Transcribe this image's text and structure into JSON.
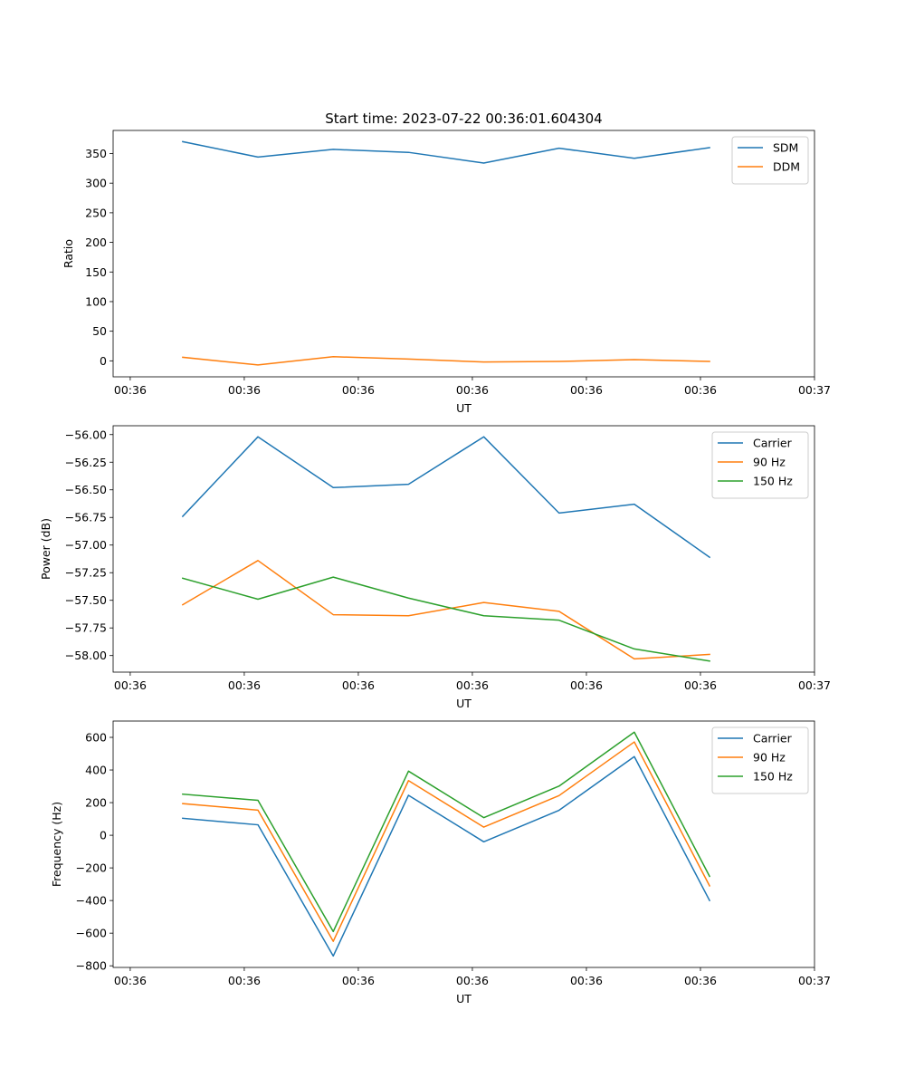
{
  "figure": {
    "title": "Start time: 2023-07-22 00:36:01.604304"
  },
  "chart_data": [
    {
      "type": "line",
      "title": "Start time: 2023-07-22 00:36:01.604304",
      "xlabel": "UT",
      "ylabel": "Ratio",
      "x_tick_labels": [
        "00:36",
        "00:36",
        "00:36",
        "00:36",
        "00:36",
        "00:36",
        "00:37"
      ],
      "x_ticks": [
        0,
        1,
        2,
        3,
        4,
        5,
        6
      ],
      "xlim": [
        -0.15,
        6.0
      ],
      "ylim": [
        -27,
        389
      ],
      "y_ticks": [
        0,
        50,
        100,
        150,
        200,
        250,
        300,
        350
      ],
      "y_tick_labels": [
        "0",
        "50",
        "100",
        "150",
        "200",
        "250",
        "300",
        "350"
      ],
      "legend_location": "top-right",
      "series": [
        {
          "name": "SDM",
          "color": "#1f77b4",
          "x": [
            0.46,
            1.12,
            1.78,
            2.44,
            3.1,
            3.76,
            4.42,
            5.08
          ],
          "y": [
            370,
            344,
            357,
            352,
            334,
            359,
            342,
            360
          ]
        },
        {
          "name": "DDM",
          "color": "#ff7f0e",
          "x": [
            0.46,
            1.12,
            1.78,
            2.44,
            3.1,
            3.76,
            4.42,
            5.08
          ],
          "y": [
            6,
            -7,
            7,
            3,
            -2,
            -1,
            2,
            -1
          ]
        }
      ]
    },
    {
      "type": "line",
      "title": "",
      "xlabel": "UT",
      "ylabel": "Power (dB)",
      "x_tick_labels": [
        "00:36",
        "00:36",
        "00:36",
        "00:36",
        "00:36",
        "00:36",
        "00:37"
      ],
      "x_ticks": [
        0,
        1,
        2,
        3,
        4,
        5,
        6
      ],
      "xlim": [
        -0.15,
        6.0
      ],
      "ylim": [
        -58.15,
        -55.92
      ],
      "y_ticks": [
        -56.0,
        -56.25,
        -56.5,
        -56.75,
        -57.0,
        -57.25,
        -57.5,
        -57.75,
        -58.0
      ],
      "y_tick_labels": [
        "−56.00",
        "−56.25",
        "−56.50",
        "−56.75",
        "−57.00",
        "−57.25",
        "−57.50",
        "−57.75",
        "−58.00"
      ],
      "legend_location": "top-right",
      "series": [
        {
          "name": "Carrier",
          "color": "#1f77b4",
          "x": [
            0.46,
            1.12,
            1.78,
            2.44,
            3.1,
            3.76,
            4.42,
            5.08
          ],
          "y": [
            -56.74,
            -56.02,
            -56.48,
            -56.45,
            -56.02,
            -56.71,
            -56.63,
            -57.11
          ]
        },
        {
          "name": "90 Hz",
          "color": "#ff7f0e",
          "x": [
            0.46,
            1.12,
            1.78,
            2.44,
            3.1,
            3.76,
            4.42,
            5.08
          ],
          "y": [
            -57.54,
            -57.14,
            -57.63,
            -57.64,
            -57.52,
            -57.6,
            -58.03,
            -57.99
          ]
        },
        {
          "name": "150 Hz",
          "color": "#2ca02c",
          "x": [
            0.46,
            1.12,
            1.78,
            2.44,
            3.1,
            3.76,
            4.42,
            5.08
          ],
          "y": [
            -57.3,
            -57.49,
            -57.29,
            -57.48,
            -57.64,
            -57.68,
            -57.94,
            -58.05
          ]
        }
      ]
    },
    {
      "type": "line",
      "title": "",
      "xlabel": "UT",
      "ylabel": "Frequency (Hz)",
      "x_tick_labels": [
        "00:36",
        "00:36",
        "00:36",
        "00:36",
        "00:36",
        "00:36",
        "00:37"
      ],
      "x_ticks": [
        0,
        1,
        2,
        3,
        4,
        5,
        6
      ],
      "xlim": [
        -0.15,
        6.0
      ],
      "ylim": [
        -810,
        700
      ],
      "y_ticks": [
        600,
        400,
        200,
        0,
        -200,
        -400,
        -600,
        -800
      ],
      "y_tick_labels": [
        "600",
        "400",
        "200",
        "0",
        "−200",
        "−400",
        "−600",
        "−800"
      ],
      "legend_location": "top-right",
      "series": [
        {
          "name": "Carrier",
          "color": "#1f77b4",
          "x": [
            0.46,
            1.12,
            1.78,
            2.44,
            3.1,
            3.76,
            4.42,
            5.08
          ],
          "y": [
            104,
            64,
            -740,
            245,
            -40,
            153,
            482,
            -400
          ]
        },
        {
          "name": "90 Hz",
          "color": "#ff7f0e",
          "x": [
            0.46,
            1.12,
            1.78,
            2.44,
            3.1,
            3.76,
            4.42,
            5.08
          ],
          "y": [
            194,
            154,
            -650,
            335,
            50,
            243,
            572,
            -310
          ]
        },
        {
          "name": "150 Hz",
          "color": "#2ca02c",
          "x": [
            0.46,
            1.12,
            1.78,
            2.44,
            3.1,
            3.76,
            4.42,
            5.08
          ],
          "y": [
            252,
            214,
            -590,
            393,
            108,
            301,
            632,
            -252
          ]
        }
      ]
    }
  ]
}
